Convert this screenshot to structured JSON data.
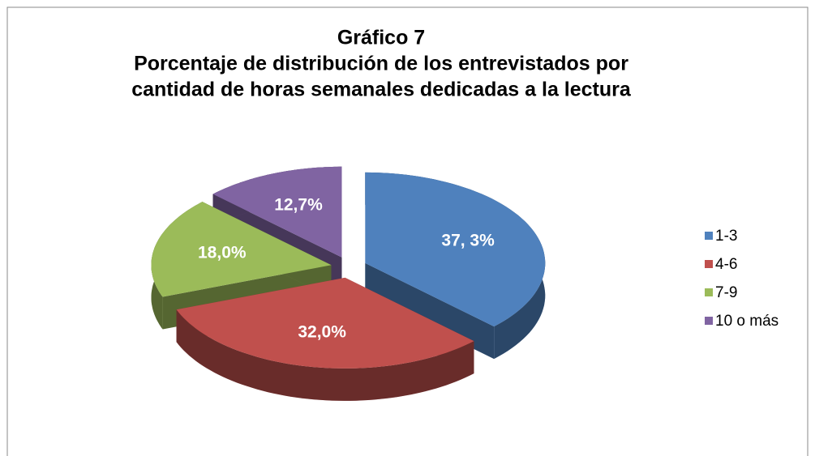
{
  "chart_data": {
    "type": "pie3d",
    "title": [
      "Gráfico 7",
      "Porcentaje de distribución de los entrevistados por",
      "cantidad de horas semanales dedicadas a la lectura"
    ],
    "categories": [
      "1-3",
      "4-6",
      "7-9",
      "10 o más"
    ],
    "values": [
      37.3,
      32.0,
      18.0,
      12.7
    ],
    "value_labels": [
      "37, 3%",
      "32,0%",
      "18,0%",
      "12,7%"
    ],
    "colors": [
      "#4f81bd",
      "#c0504d",
      "#9bbb59",
      "#8064a2"
    ],
    "legend": "right"
  }
}
